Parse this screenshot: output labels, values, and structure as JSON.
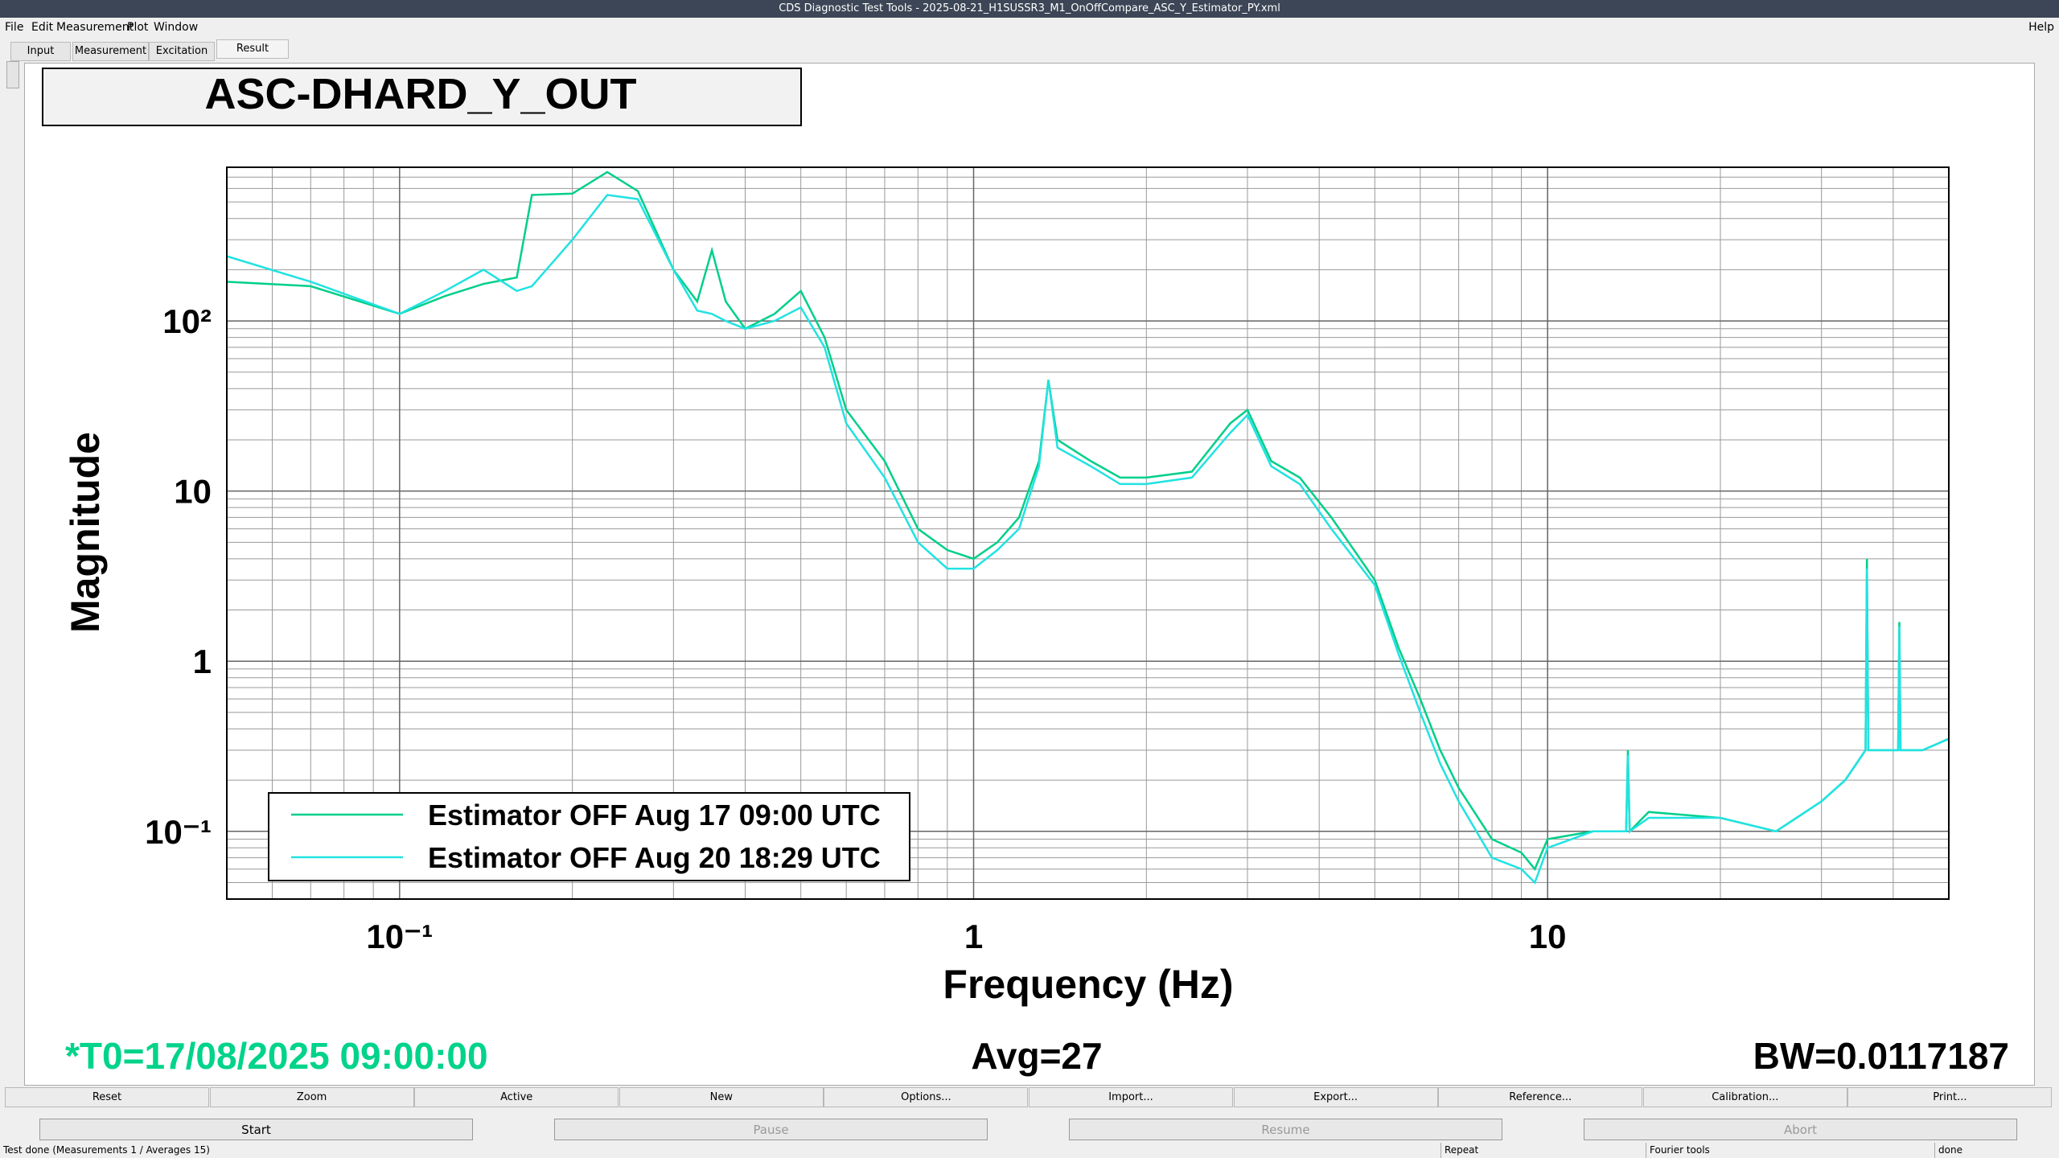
{
  "window": {
    "title": "CDS Diagnostic Test Tools - 2025-08-21_H1SUSSR3_M1_OnOffCompare_ASC_Y_Estimator_PY.xml"
  },
  "menu": [
    "File",
    "Edit",
    "Measurement",
    "Plot",
    "Window"
  ],
  "help": "Help",
  "tabs": [
    "Input",
    "Measurement",
    "Excitation",
    "Result"
  ],
  "chart_data": {
    "type": "line",
    "title": "ASC-DHARD_Y_OUT",
    "xlabel": "Frequency (Hz)",
    "ylabel": "Magnitude",
    "xlog": true,
    "ylog": true,
    "grid": true,
    "legend": "lower left",
    "xlim": [
      0.05,
      50
    ],
    "ylim": [
      0.04,
      800
    ],
    "xticks": [
      {
        "value": 0.1,
        "label": "10⁻¹"
      },
      1,
      10
    ],
    "yticks": [
      {
        "value": 0.1,
        "label": "10⁻¹"
      },
      1,
      10,
      {
        "value": 100,
        "label": "10²"
      }
    ],
    "x": [
      0.05,
      0.07,
      0.1,
      0.12,
      0.14,
      0.16,
      0.17,
      0.2,
      0.23,
      0.26,
      0.3,
      0.33,
      0.35,
      0.37,
      0.4,
      0.45,
      0.5,
      0.55,
      0.6,
      0.7,
      0.8,
      0.9,
      1.0,
      1.1,
      1.2,
      1.3,
      1.35,
      1.4,
      1.6,
      1.8,
      2.0,
      2.4,
      2.8,
      3.0,
      3.3,
      3.7,
      4.2,
      5,
      5.5,
      6,
      6.5,
      7,
      8,
      9,
      9.5,
      10,
      12,
      13.7,
      13.8,
      13.9,
      15,
      20,
      25,
      30,
      33,
      35.8,
      36,
      36.2,
      38,
      40.8,
      41,
      41.2,
      45,
      50
    ],
    "series": [
      {
        "name": "Estimator OFF Aug 17 09:00 UTC",
        "color": "#00cf8a",
        "values": [
          170,
          160,
          110,
          140,
          165,
          180,
          550,
          560,
          750,
          580,
          200,
          130,
          260,
          130,
          90,
          110,
          150,
          80,
          30,
          15,
          6,
          4.5,
          4,
          5,
          7,
          15,
          45,
          20,
          15,
          12,
          12,
          13,
          25,
          30,
          15,
          12,
          7,
          3,
          1.2,
          0.6,
          0.3,
          0.18,
          0.09,
          0.075,
          0.06,
          0.09,
          0.1,
          0.1,
          0.3,
          0.1,
          0.13,
          0.12,
          0.1,
          0.15,
          0.2,
          0.3,
          4,
          0.3,
          0.3,
          0.3,
          1.7,
          0.3,
          0.3,
          0.35
        ]
      },
      {
        "name": "Estimator OFF Aug 20 18:29 UTC",
        "color": "#22e2e2",
        "values": [
          240,
          170,
          110,
          150,
          200,
          150,
          160,
          300,
          550,
          520,
          200,
          115,
          110,
          100,
          90,
          100,
          120,
          70,
          25,
          12,
          5,
          3.5,
          3.5,
          4.5,
          6,
          14,
          45,
          18,
          14,
          11,
          11,
          12,
          22,
          28,
          14,
          11,
          6,
          2.8,
          1.1,
          0.5,
          0.25,
          0.15,
          0.07,
          0.06,
          0.05,
          0.08,
          0.1,
          0.1,
          0.28,
          0.1,
          0.12,
          0.12,
          0.1,
          0.15,
          0.2,
          0.3,
          3.5,
          0.3,
          0.3,
          0.3,
          1.6,
          0.3,
          0.3,
          0.35
        ]
      }
    ]
  },
  "info": {
    "t0": "*T0=17/08/2025 09:00:00",
    "avg": "Avg=27",
    "bw": "BW=0.0117187"
  },
  "buttons": [
    "Reset",
    "Zoom",
    "Active",
    "New",
    "Options...",
    "Import...",
    "Export...",
    "Reference...",
    "Calibration...",
    "Print..."
  ],
  "controls": [
    "Start",
    "Pause",
    "Resume",
    "Abort"
  ],
  "status": [
    "Test done (Measurements 1 / Averages 15)",
    "Repeat",
    "Fourier tools",
    "done"
  ]
}
